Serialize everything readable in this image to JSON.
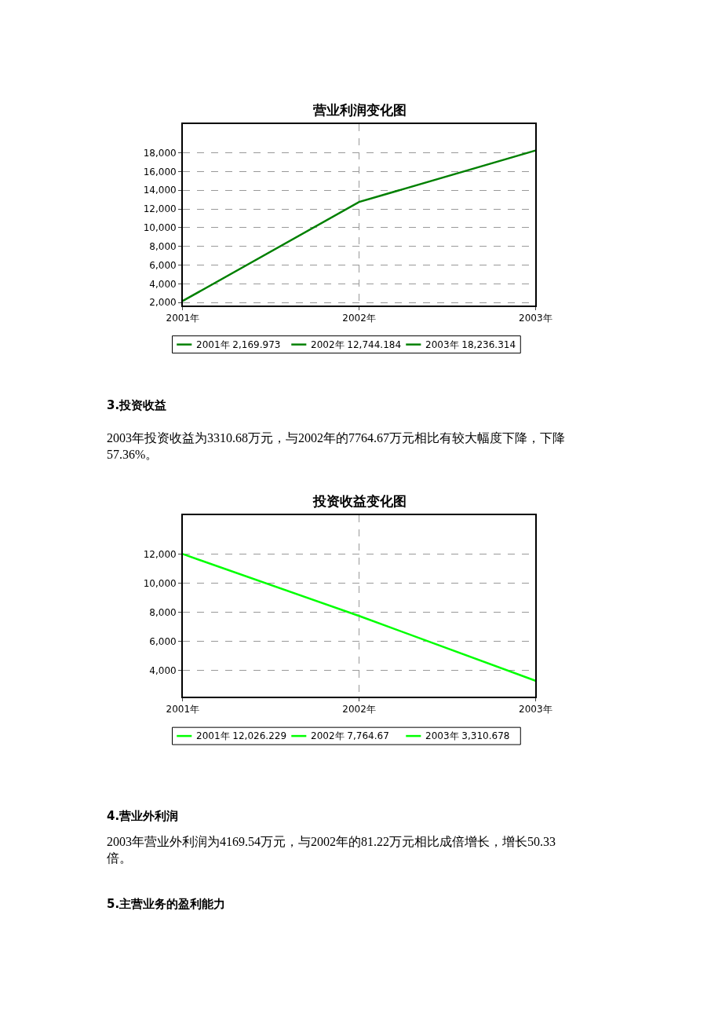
{
  "chart_data": [
    {
      "type": "line",
      "title": "营业利润变化图",
      "categories": [
        "2001年",
        "2002年",
        "2003年"
      ],
      "series": [
        {
          "color": "#008000",
          "values": [
            2169.973,
            12744.184,
            18236.314
          ],
          "value_labels": [
            "2001年 2,169.973",
            "2002年 12,744.184",
            "2003年 18,236.314"
          ]
        }
      ],
      "ylim": [
        1700,
        21100
      ],
      "yticks": [
        {
          "value": 2000,
          "label": "2,000"
        },
        {
          "value": 4000,
          "label": "4,000"
        },
        {
          "value": 6000,
          "label": "6,000"
        },
        {
          "value": 8000,
          "label": "8,000"
        },
        {
          "value": 10000,
          "label": "10,000"
        },
        {
          "value": 12000,
          "label": "12,000"
        },
        {
          "value": 14000,
          "label": "14,000"
        },
        {
          "value": 16000,
          "label": "16,000"
        },
        {
          "value": 18000,
          "label": "18,000"
        }
      ],
      "grid": true,
      "line_style": "solid",
      "marker": "none"
    },
    {
      "type": "line",
      "title": "投资收益变化图",
      "categories": [
        "2001年",
        "2002年",
        "2003年"
      ],
      "series": [
        {
          "color": "#00ff00",
          "values": [
            12026.229,
            7764.67,
            3310.678
          ],
          "value_labels": [
            "2001年 12,026.229",
            "2002年 7,764.67",
            "2003年 3,310.678"
          ]
        }
      ],
      "ylim": [
        2200,
        14700
      ],
      "yticks": [
        {
          "value": 4000,
          "label": "4,000"
        },
        {
          "value": 6000,
          "label": "6,000"
        },
        {
          "value": 8000,
          "label": "8,000"
        },
        {
          "value": 10000,
          "label": "10,000"
        },
        {
          "value": 12000,
          "label": "12,000"
        }
      ],
      "grid": true,
      "line_style": "solid",
      "marker": "none",
      "annotations": [
        "3.投资收益",
        "2003年投资收益为3310.68万元，与2002年的7764.67万元相比有较大幅度下降，下降\n57.36%。",
        "4.营业外利润",
        "2003年营业外利润为4169.54万元，与2002年的81.22万元相比成倍增长，增长50.33\n倍。",
        "5.主营业务的盈利能力"
      ]
    }
  ]
}
